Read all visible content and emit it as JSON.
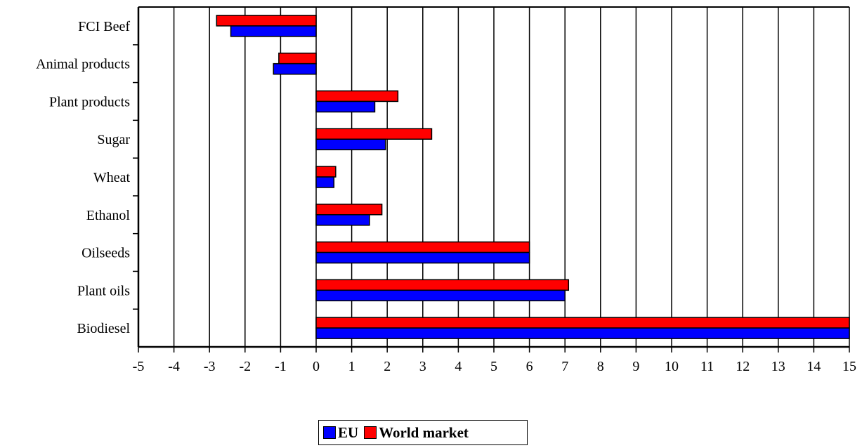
{
  "chart_data": {
    "type": "bar",
    "orientation": "horizontal",
    "categories": [
      "FCI Beef",
      "Animal products",
      "Plant products",
      "Sugar",
      "Wheat",
      "Ethanol",
      "Oilseeds",
      "Plant oils",
      "Biodiesel"
    ],
    "series": [
      {
        "name": "EU",
        "color": "#0000ff",
        "values": [
          -2.4,
          -1.2,
          1.65,
          1.95,
          0.5,
          1.5,
          6.0,
          7.0,
          15.0
        ]
      },
      {
        "name": "World market",
        "color": "#ff0000",
        "values": [
          -2.8,
          -1.05,
          2.3,
          3.25,
          0.55,
          1.85,
          6.0,
          7.1,
          15.0
        ]
      }
    ],
    "xlim": [
      -5,
      15
    ],
    "xticks": [
      "-5",
      "-4",
      "-3",
      "-2",
      "-1",
      "0",
      "1",
      "2",
      "3",
      "4",
      "5",
      "6",
      "7",
      "8",
      "9",
      "10",
      "11",
      "12",
      "13",
      "14",
      "15"
    ],
    "grid": "vertical",
    "legend_position": "bottom-center",
    "title": "",
    "xlabel": "",
    "ylabel": ""
  },
  "legend": {
    "items": [
      {
        "label": "EU",
        "color": "#0000ff"
      },
      {
        "label": "World market",
        "color": "#ff0000"
      }
    ]
  }
}
